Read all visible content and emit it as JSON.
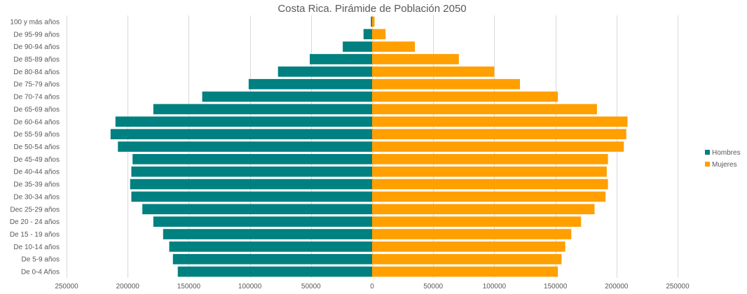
{
  "chart_data": {
    "type": "bar",
    "orientation": "horizontal",
    "title": "Costa Rica. Pirámide de Población 2050",
    "categories": [
      "De 0-4 Años",
      "De 5-9 años",
      "De 10-14 años",
      "De 15 - 19 años",
      "De 20 - 24 años",
      "Dec 25-29 años",
      "De 30-34 años",
      "De 35-39 años",
      "De 40-44 años",
      "De 45-49 años",
      "De 50-54 años",
      "De 55-59 años",
      "De 60-64 años",
      "De 65-69 años",
      "De 70-74 años",
      "De 75-79 años",
      "De 80-84 años",
      "De 85-89 años",
      "De 90-94 años",
      "De 95-99 años",
      "100 y más años"
    ],
    "series": [
      {
        "name": "Hombres",
        "color": "#008080",
        "values": [
          -159000,
          -163000,
          -166000,
          -171000,
          -179000,
          -188000,
          -197000,
          -198000,
          -197000,
          -196000,
          -208000,
          -214000,
          -210000,
          -179000,
          -139000,
          -101000,
          -77000,
          -51000,
          -24000,
          -7000,
          -1000
        ]
      },
      {
        "name": "Mujeres",
        "color": "#FF9F00",
        "values": [
          152000,
          155000,
          158000,
          163000,
          171000,
          182000,
          191000,
          193000,
          192000,
          193000,
          206000,
          208000,
          209000,
          184000,
          152000,
          121000,
          100000,
          71000,
          35000,
          11000,
          2000
        ]
      }
    ],
    "xlim": [
      -250000,
      250000
    ],
    "x_ticks": [
      -250000,
      -200000,
      -150000,
      -100000,
      -50000,
      0,
      50000,
      100000,
      150000,
      200000,
      250000
    ],
    "x_tick_labels": [
      "250000",
      "200000",
      "150000",
      "100000",
      "50000",
      "0",
      "50000",
      "100000",
      "150000",
      "200000",
      "250000"
    ],
    "grid": true,
    "legend_position": "right"
  }
}
